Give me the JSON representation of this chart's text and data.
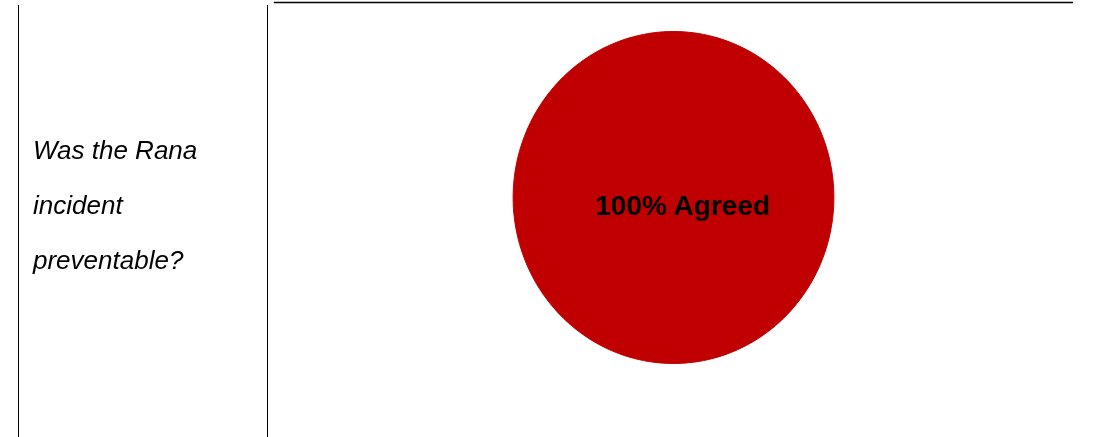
{
  "chart_data": {
    "type": "pie",
    "title": "Was the Rana incident preventable?",
    "categories": [
      "Agreed"
    ],
    "values": [
      100
    ],
    "colors": [
      "#c00000"
    ],
    "value_labels": [
      "100%"
    ]
  }
}
